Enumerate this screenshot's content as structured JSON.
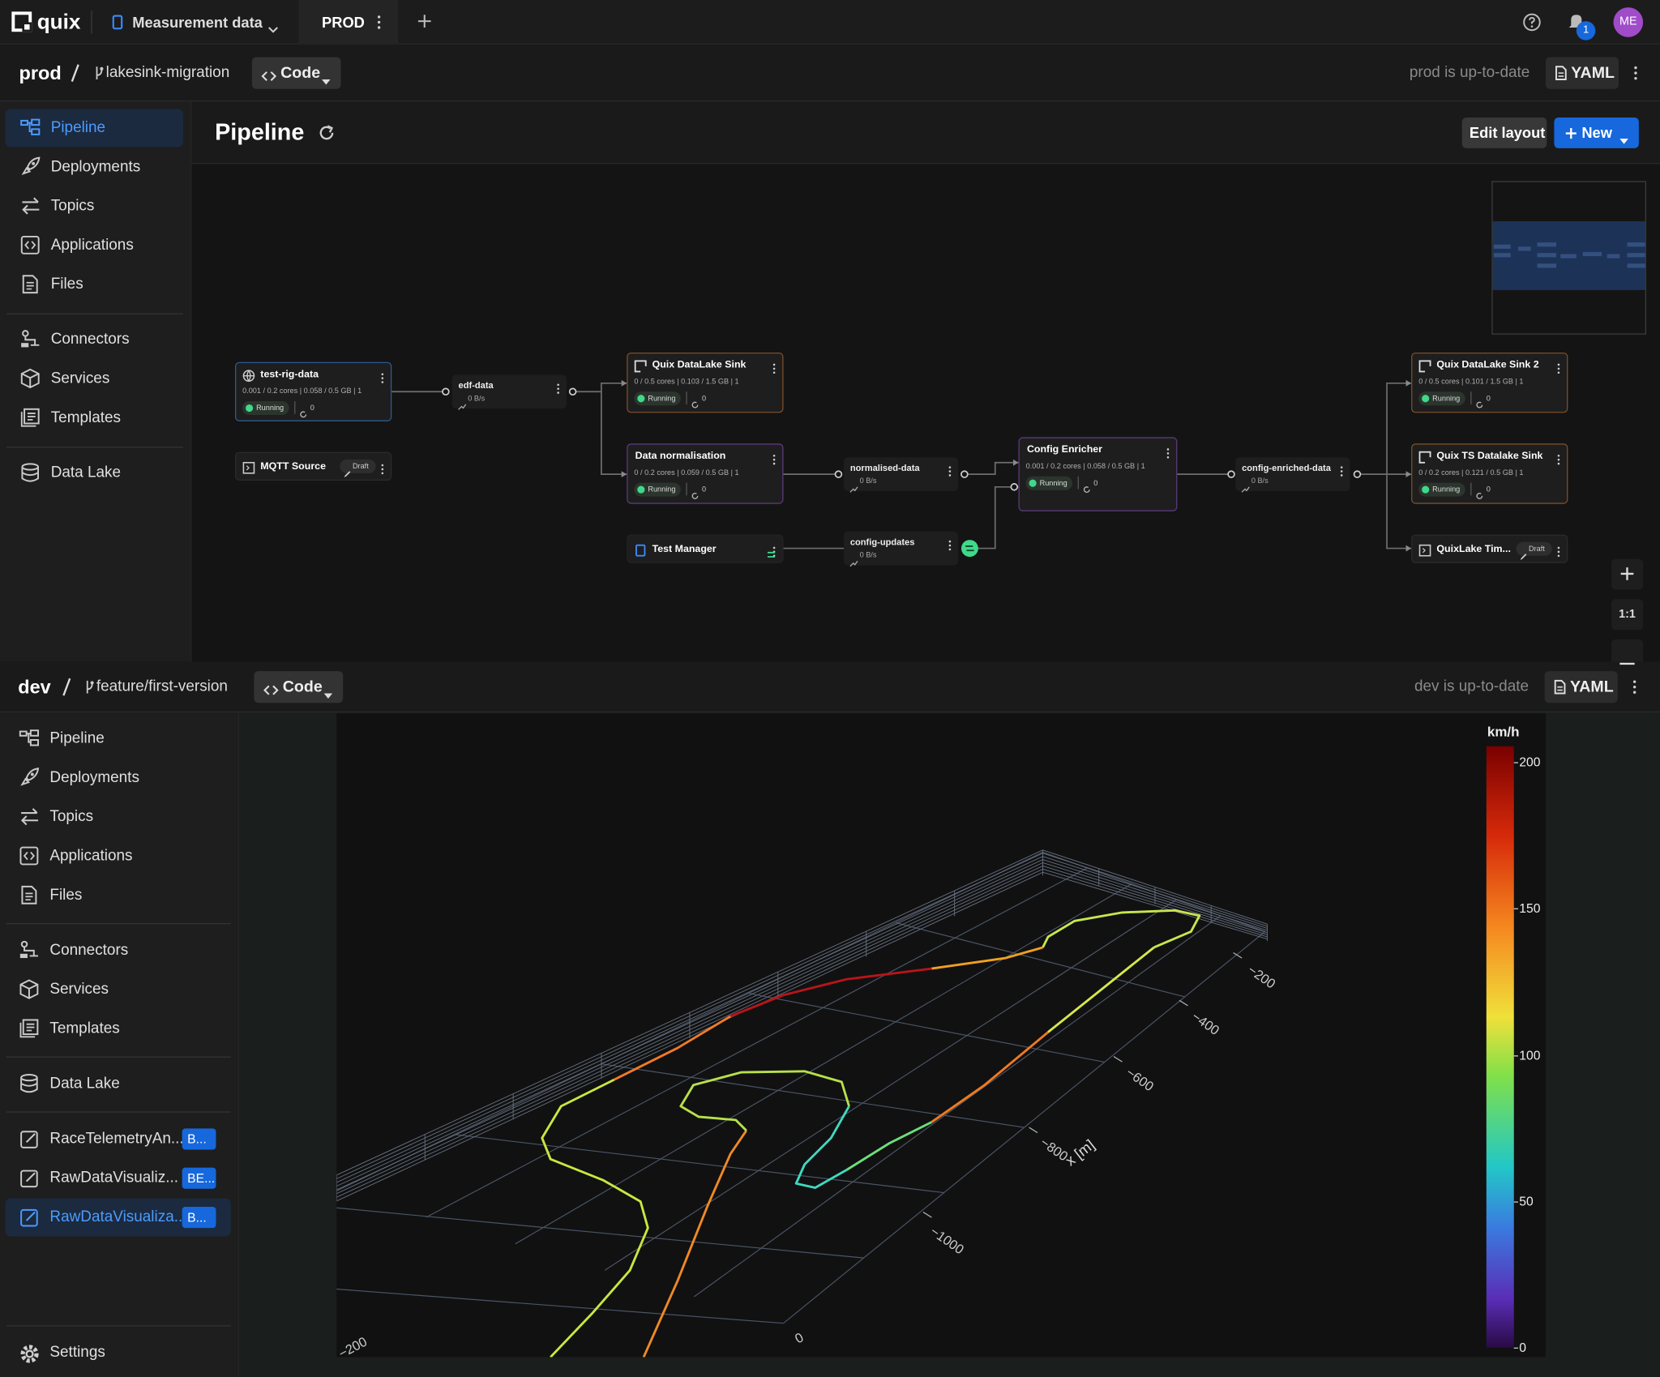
{
  "topbar": {
    "brand": "quix",
    "project": "Measurement data",
    "tab": "PROD",
    "notifications": "1",
    "avatar": "ME"
  },
  "prod": {
    "env": "prod",
    "branch": "lakesink-migration",
    "code": "Code",
    "status": "prod is up-to-date",
    "yaml": "YAML",
    "nav": [
      "Pipeline",
      "Deployments",
      "Topics",
      "Applications",
      "Files",
      "Connectors",
      "Services",
      "Templates",
      "Data Lake"
    ],
    "page_title": "Pipeline",
    "edit_layout": "Edit layout",
    "new": "New",
    "zoom_reset": "1:1",
    "deployments": [
      {
        "name": "test-rig-data",
        "stats": "0.001 / 0.2 cores | 0.058 / 0.5 GB | 1",
        "status": "Running",
        "restarts": "0"
      },
      {
        "name": "MQTT Source",
        "badge": "Draft"
      },
      {
        "name": "Quix DataLake Sink",
        "stats": "0 / 0.5 cores | 0.103 / 1.5 GB | 1",
        "status": "Running",
        "restarts": "0"
      },
      {
        "name": "Data normalisation",
        "stats": "0 / 0.2 cores | 0.059 / 0.5 GB | 1",
        "status": "Running",
        "restarts": "0"
      },
      {
        "name": "Test Manager"
      },
      {
        "name": "Config Enricher",
        "stats": "0.001 / 0.2 cores | 0.058 / 0.5 GB | 1",
        "status": "Running",
        "restarts": "0"
      },
      {
        "name": "Quix DataLake Sink 2",
        "stats": "0 / 0.5 cores | 0.101 / 1.5 GB | 1",
        "status": "Running",
        "restarts": "0"
      },
      {
        "name": "Quix TS Datalake Sink",
        "stats": "0 / 0.2 cores | 0.121 / 0.5 GB | 1",
        "status": "Running",
        "restarts": "0"
      },
      {
        "name": "QuixLake Tim...",
        "badge": "Draft"
      }
    ],
    "topics": [
      {
        "name": "edf-data",
        "rate": "0 B/s"
      },
      {
        "name": "normalised-data",
        "rate": "0 B/s"
      },
      {
        "name": "config-updates",
        "rate": "0 B/s"
      },
      {
        "name": "config-enriched-data",
        "rate": "0 B/s"
      }
    ]
  },
  "dev": {
    "env": "dev",
    "branch": "feature/first-version",
    "code": "Code",
    "status": "dev is up-to-date",
    "yaml": "YAML",
    "nav": [
      "Pipeline",
      "Deployments",
      "Topics",
      "Applications",
      "Files",
      "Connectors",
      "Services",
      "Templates",
      "Data Lake"
    ],
    "apps": [
      {
        "name": "RaceTelemetryAn...",
        "badge": "B..."
      },
      {
        "name": "RawDataVisualiz...",
        "badge": "BE..."
      },
      {
        "name": "RawDataVisualiza...",
        "badge": "B..."
      }
    ],
    "settings": "Settings",
    "plot": {
      "colorbar": {
        "title": "km/h",
        "range": [
          0,
          200
        ],
        "ticks": [
          0,
          50,
          100,
          150,
          200
        ]
      },
      "x_axis": {
        "title": "x [m]",
        "ticks": [
          "−200",
          "−400",
          "−600",
          "−800",
          "−1000"
        ]
      },
      "y_axis": {
        "ticks": [
          "−200",
          "0"
        ]
      }
    }
  }
}
